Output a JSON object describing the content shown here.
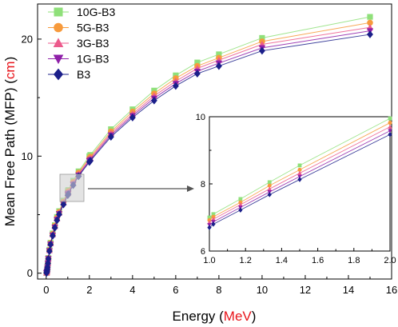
{
  "chart_data": {
    "type": "line",
    "xlabel_prefix": "Energy (",
    "xlabel_unit": "MeV",
    "xlabel_suffix": ")",
    "ylabel_prefix": "Mean Free Path (MFP) (",
    "ylabel_unit": "cm",
    "ylabel_suffix": ")",
    "unit_color": "#e8141a",
    "xlim": [
      -0.4,
      16
    ],
    "ylim": [
      -0.5,
      23
    ],
    "xticks": [
      0,
      2,
      4,
      6,
      8,
      10,
      12,
      14,
      16
    ],
    "yticks": [
      0,
      10,
      20
    ],
    "legend_position": "top-left",
    "x": [
      0.015,
      0.02,
      0.03,
      0.04,
      0.05,
      0.06,
      0.08,
      0.1,
      0.15,
      0.2,
      0.3,
      0.4,
      0.5,
      0.6,
      0.8,
      1.0,
      1.022,
      1.25,
      1.5,
      2,
      2.044,
      3,
      4,
      5,
      6,
      7,
      8,
      10,
      15
    ],
    "series": [
      {
        "name": "10G-B3",
        "color": "#8fe07a",
        "marker": "square",
        "values": [
          0.02,
          0.04,
          0.1,
          0.2,
          0.35,
          0.55,
          0.9,
          1.3,
          2.0,
          2.6,
          3.4,
          4.1,
          4.8,
          5.3,
          6.2,
          7.0,
          7.1,
          7.9,
          8.7,
          10.0,
          10.1,
          12.3,
          14.0,
          15.6,
          16.9,
          18.0,
          18.7,
          20.1,
          21.9
        ]
      },
      {
        "name": "5G-B3",
        "color": "#f79a3c",
        "marker": "circle",
        "values": [
          0.02,
          0.04,
          0.1,
          0.2,
          0.34,
          0.54,
          0.88,
          1.28,
          1.97,
          2.56,
          3.35,
          4.05,
          4.72,
          5.22,
          6.1,
          6.9,
          7.0,
          7.78,
          8.58,
          9.85,
          9.95,
          12.1,
          13.8,
          15.35,
          16.65,
          17.7,
          18.4,
          19.8,
          21.4
        ]
      },
      {
        "name": "3G-B3",
        "color": "#ec5a8c",
        "marker": "triangle-up",
        "values": [
          0.02,
          0.04,
          0.1,
          0.19,
          0.33,
          0.53,
          0.86,
          1.26,
          1.94,
          2.52,
          3.3,
          3.99,
          4.65,
          5.15,
          6.02,
          6.82,
          6.92,
          7.68,
          8.47,
          9.72,
          9.82,
          11.95,
          13.6,
          15.15,
          16.4,
          17.5,
          18.2,
          19.55,
          21.0
        ]
      },
      {
        "name": "1G-B3",
        "color": "#8e1fa8",
        "marker": "triangle-down",
        "values": [
          0.02,
          0.04,
          0.1,
          0.19,
          0.33,
          0.52,
          0.85,
          1.24,
          1.91,
          2.48,
          3.25,
          3.93,
          4.58,
          5.08,
          5.94,
          6.74,
          6.84,
          7.6,
          8.37,
          9.6,
          9.7,
          11.8,
          13.45,
          14.95,
          16.2,
          17.25,
          17.95,
          19.25,
          20.7
        ]
      },
      {
        "name": "B3",
        "color": "#1b1f8a",
        "marker": "diamond",
        "values": [
          0.02,
          0.04,
          0.1,
          0.19,
          0.32,
          0.51,
          0.84,
          1.22,
          1.88,
          2.45,
          3.2,
          3.88,
          4.52,
          5.02,
          5.87,
          6.66,
          6.76,
          7.52,
          8.28,
          9.5,
          9.6,
          11.65,
          13.3,
          14.75,
          16.0,
          17.05,
          17.7,
          19.0,
          20.4
        ]
      }
    ],
    "inset": {
      "xlim": [
        1.0,
        2.0
      ],
      "ylim": [
        6,
        10
      ],
      "xticks": [
        1.0,
        1.2,
        1.4,
        1.6,
        1.8,
        2.0
      ],
      "xtick_labels": [
        "1.0",
        "1.2",
        "1.4",
        "1.6",
        "1.8",
        "2.0"
      ],
      "yticks": [
        6,
        8,
        10
      ],
      "x": [
        1.0,
        1.022,
        1.172,
        1.333,
        1.5,
        2.0
      ],
      "series": [
        {
          "name": "10G-B3",
          "values": [
            7.0,
            7.1,
            7.55,
            8.05,
            8.55,
            9.95
          ]
        },
        {
          "name": "5G-B3",
          "values": [
            6.92,
            7.02,
            7.45,
            7.95,
            8.42,
            9.82
          ]
        },
        {
          "name": "3G-B3",
          "values": [
            6.85,
            6.95,
            7.38,
            7.85,
            8.32,
            9.7
          ]
        },
        {
          "name": "1G-B3",
          "values": [
            6.78,
            6.87,
            7.3,
            7.76,
            8.22,
            9.58
          ]
        },
        {
          "name": "B3",
          "values": [
            6.7,
            6.8,
            7.22,
            7.68,
            8.13,
            9.47
          ]
        }
      ]
    }
  }
}
